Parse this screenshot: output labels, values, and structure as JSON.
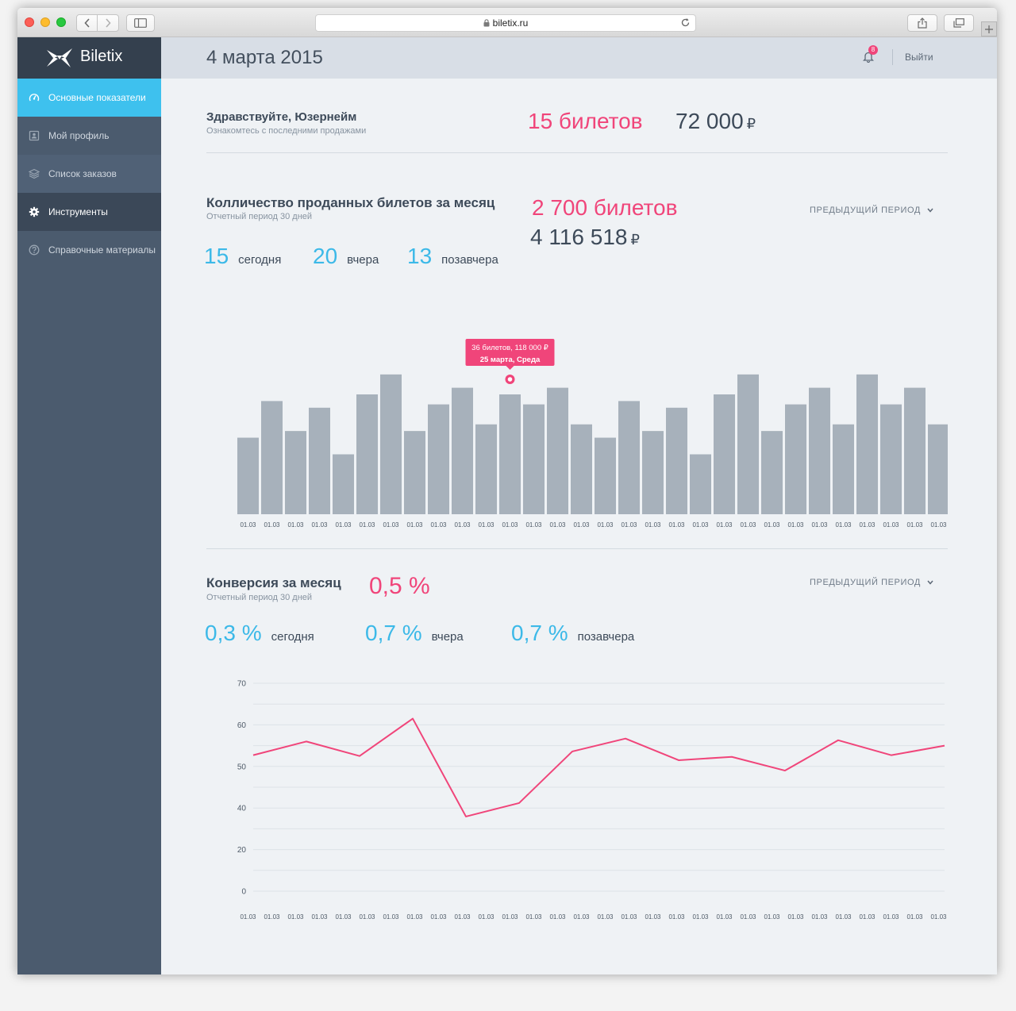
{
  "browser": {
    "url": "biletix.ru"
  },
  "sidebar": {
    "logo": "Biletix",
    "items": [
      {
        "label": "Основные показатели",
        "icon": "dashboard-icon",
        "state": "active"
      },
      {
        "label": "Мой профиль",
        "icon": "profile-icon"
      },
      {
        "label": "Список заказов",
        "icon": "layers-icon"
      },
      {
        "label": "Инструменты",
        "icon": "gear-icon",
        "state": "selected"
      },
      {
        "label": "Справочные материалы",
        "icon": "help-icon"
      }
    ]
  },
  "header": {
    "date": "4 марта 2015",
    "notifications": "8",
    "logout": "Выйти"
  },
  "welcome": {
    "greeting": "Здравствуйте, Юзернейм",
    "subtitle": "Ознакомтесь с последними продажами",
    "tickets": "15 билетов",
    "revenue": "72 000",
    "currency": "₽"
  },
  "sales": {
    "title": "Колличество проданных билетов за месяц",
    "subtitle": "Отчетный период 30 дней",
    "total_tickets": "2 700 билетов",
    "total_revenue": "4 116 518",
    "currency": "₽",
    "period": "ПРЕДЫДУЩИЙ ПЕРИОД",
    "stats": [
      {
        "value": "15",
        "label": "сегодня"
      },
      {
        "value": "20",
        "label": "вчера"
      },
      {
        "value": "13",
        "label": "позавчера"
      }
    ],
    "tooltip": {
      "line1": "36 билетов, 118 000 ₽",
      "line2": "25 марта, Среда"
    }
  },
  "conversion": {
    "title": "Конверсия за месяц",
    "subtitle": "Отчетный период 30 дней",
    "value": "0,5 %",
    "period": "ПРЕДЫДУЩИЙ ПЕРИОД",
    "stats": [
      {
        "value": "0,3 %",
        "label": "сегодня"
      },
      {
        "value": "0,7 %",
        "label": "вчера"
      },
      {
        "value": "0,7 %",
        "label": "позавчера"
      }
    ]
  },
  "colors": {
    "accent_pink": "#f0457a",
    "accent_cyan": "#3cb9e8",
    "bar": "#a7b1bb",
    "grid": "#dde2e7",
    "sidebar_active": "#3ec1ee"
  },
  "chart_data": [
    {
      "type": "bar",
      "categories": [
        "01.03",
        "01.03",
        "01.03",
        "01.03",
        "01.03",
        "01.03",
        "01.03",
        "01.03",
        "01.03",
        "01.03",
        "01.03",
        "01.03",
        "01.03",
        "01.03",
        "01.03",
        "01.03",
        "01.03",
        "01.03",
        "01.03",
        "01.03",
        "01.03",
        "01.03",
        "01.03",
        "01.03",
        "01.03",
        "01.03",
        "01.03",
        "01.03",
        "01.03",
        "01.03"
      ],
      "values": [
        23,
        34,
        25,
        32,
        18,
        36,
        42,
        25,
        33,
        38,
        27,
        36,
        33,
        38,
        27,
        23,
        34,
        25,
        32,
        18,
        36,
        42,
        25,
        33,
        38,
        27,
        42,
        33,
        38,
        27
      ],
      "highlight_index": 11,
      "grid": false
    },
    {
      "type": "line",
      "x_tick_labels": [
        "01.03",
        "01.03",
        "01.03",
        "01.03",
        "01.03",
        "01.03",
        "01.03",
        "01.03",
        "01.03",
        "01.03",
        "01.03",
        "01.03",
        "01.03",
        "01.03",
        "01.03",
        "01.03",
        "01.03",
        "01.03",
        "01.03",
        "01.03",
        "01.03",
        "01.03",
        "01.03",
        "01.03",
        "01.03",
        "01.03",
        "01.03",
        "01.03",
        "01.03",
        "01.03"
      ],
      "y_ticks": [
        70,
        60,
        50,
        40,
        20,
        0
      ],
      "values": [
        52.7,
        56,
        52.5,
        61.5,
        35.9,
        41.2,
        53.6,
        56.7,
        51.5,
        52.3,
        49,
        56.3,
        52.7,
        55
      ],
      "grid": true
    }
  ]
}
